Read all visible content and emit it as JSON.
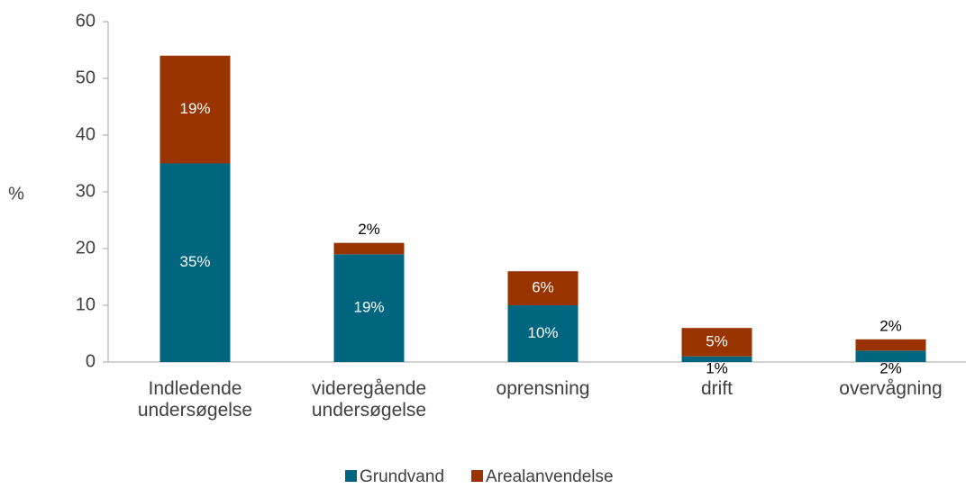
{
  "chart_data": {
    "type": "stacked_bar",
    "y_label": "%",
    "categories": [
      "Indledende undersøgelse",
      "videregående undersøgelse",
      "oprensning",
      "drift",
      "overvågning"
    ],
    "series": [
      {
        "name": "Grundvand",
        "color": "#00667f",
        "values": [
          35,
          19,
          10,
          1,
          2
        ],
        "value_labels": [
          "35%",
          "19%",
          "10%",
          "1%",
          "2%"
        ]
      },
      {
        "name": "Arealanvendelse",
        "color": "#993300",
        "values": [
          19,
          2,
          6,
          5,
          2
        ],
        "value_labels": [
          "19%",
          "2%",
          "6%",
          "5%",
          "2%"
        ]
      }
    ],
    "ylim": [
      0,
      60
    ],
    "yticks": [
      0,
      10,
      20,
      30,
      40,
      50,
      60
    ],
    "legend": "bottom"
  }
}
